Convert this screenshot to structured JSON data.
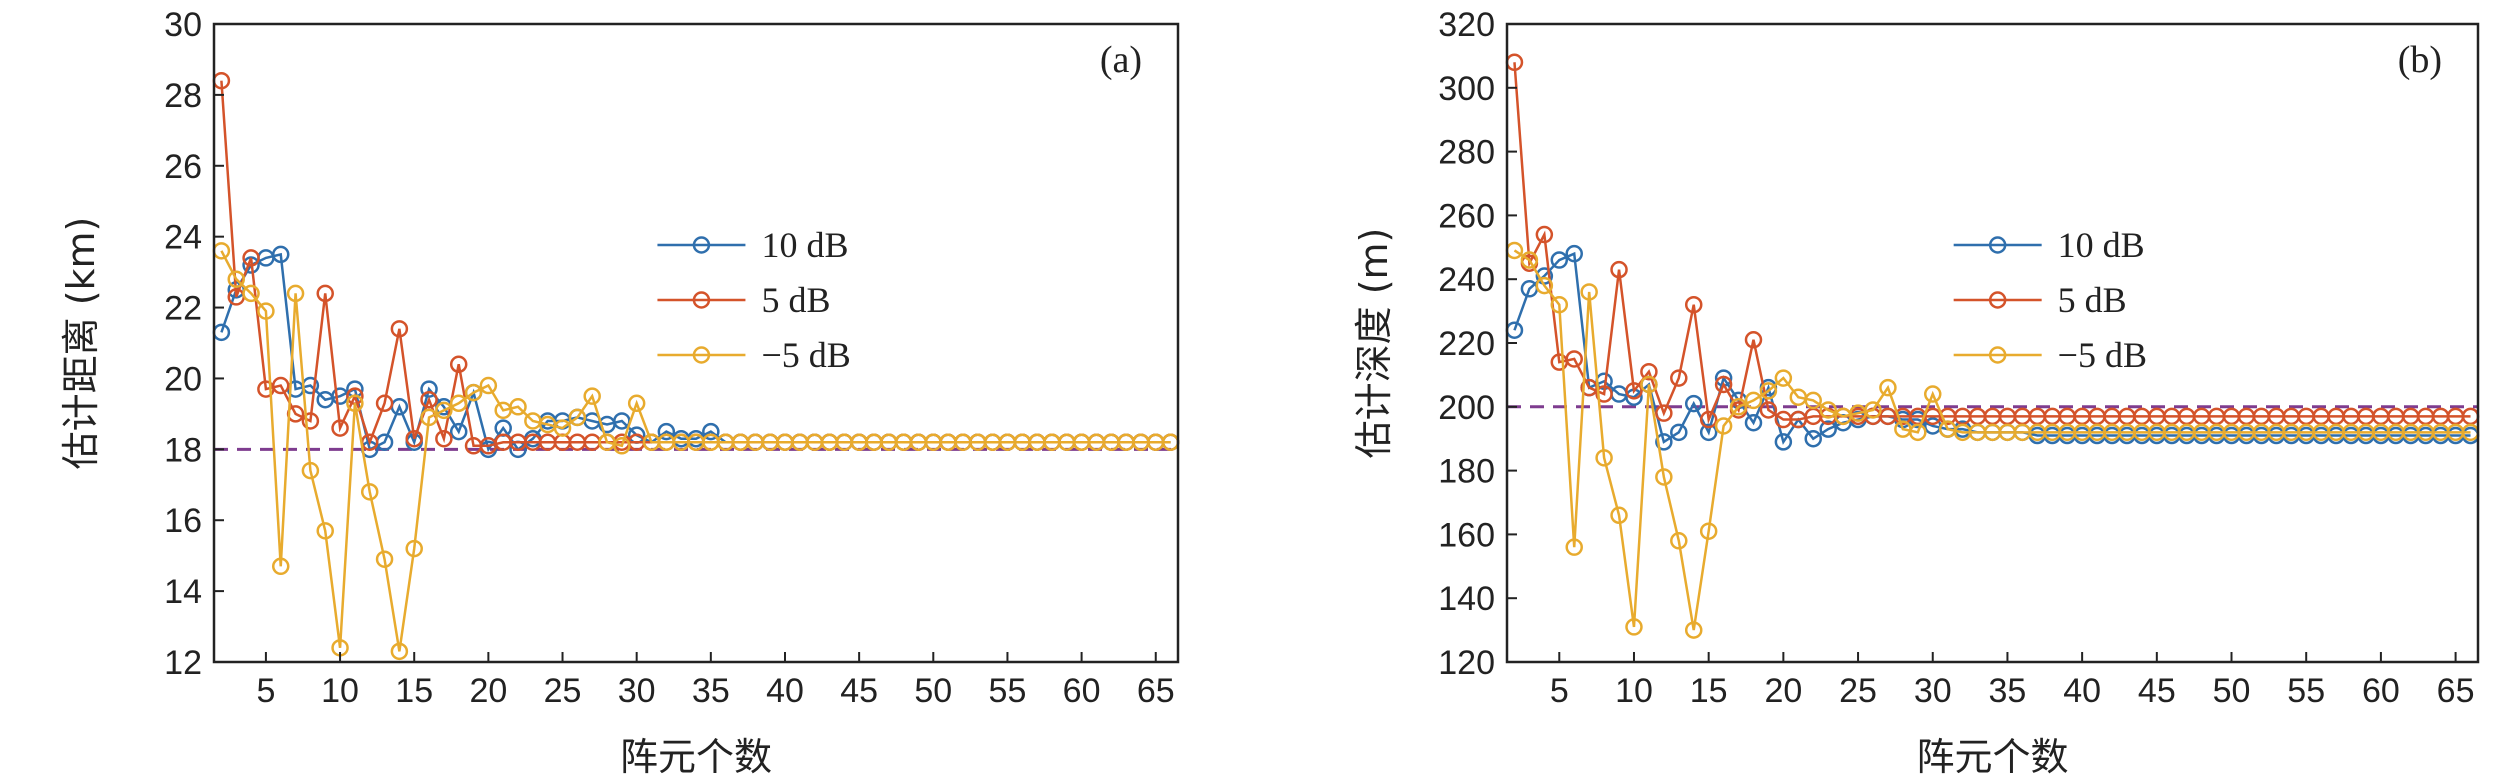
{
  "chart_data": [
    {
      "type": "line",
      "panel_label": "(a)",
      "xlabel": "阵元个数",
      "ylabel": "估计距离 (km)",
      "xlim": [
        1.5,
        66.5
      ],
      "ylim": [
        12,
        30
      ],
      "xticks": [
        5,
        10,
        15,
        20,
        25,
        30,
        35,
        40,
        45,
        50,
        55,
        60,
        65
      ],
      "yticks": [
        12,
        14,
        16,
        18,
        20,
        22,
        24,
        26,
        28,
        30
      ],
      "reference_line": {
        "y": 18,
        "color": "#7e3c8f",
        "style": "dashed"
      },
      "legend_position": "right-middle",
      "x": [
        2,
        3,
        4,
        5,
        6,
        7,
        8,
        9,
        10,
        11,
        12,
        13,
        14,
        15,
        16,
        17,
        18,
        19,
        20,
        21,
        22,
        23,
        24,
        25,
        26,
        27,
        28,
        29,
        30,
        31,
        32,
        33,
        34,
        35,
        36,
        37,
        38,
        39,
        40,
        41,
        42,
        43,
        44,
        45,
        46,
        47,
        48,
        49,
        50,
        51,
        52,
        53,
        54,
        55,
        56,
        57,
        58,
        59,
        60,
        61,
        62,
        63,
        64,
        65,
        66
      ],
      "series": [
        {
          "name": "10 dB",
          "color": "#2f6fad",
          "values": [
            21.3,
            22.5,
            23.2,
            23.4,
            23.5,
            19.7,
            19.8,
            19.4,
            19.5,
            19.7,
            18.0,
            18.2,
            19.2,
            18.2,
            19.7,
            19.2,
            18.5,
            19.6,
            18.0,
            18.6,
            18.0,
            18.3,
            18.8,
            18.8,
            18.9,
            18.8,
            18.7,
            18.8,
            18.4,
            18.2,
            18.5,
            18.3,
            18.3,
            18.5,
            18.2,
            18.2,
            18.2,
            18.2,
            18.2,
            18.2,
            18.2,
            18.2,
            18.2,
            18.2,
            18.2,
            18.2,
            18.2,
            18.2,
            18.2,
            18.2,
            18.2,
            18.2,
            18.2,
            18.2,
            18.2,
            18.2,
            18.2,
            18.2,
            18.2,
            18.2,
            18.2,
            18.2,
            18.2,
            18.2,
            18.2
          ]
        },
        {
          "name": "5 dB",
          "color": "#d4532a",
          "values": [
            28.4,
            22.3,
            23.4,
            19.7,
            19.8,
            19.0,
            18.8,
            22.4,
            18.6,
            19.5,
            18.2,
            19.3,
            21.4,
            18.3,
            19.4,
            18.3,
            20.4,
            18.1,
            18.1,
            18.2,
            18.2,
            18.2,
            18.2,
            18.2,
            18.2,
            18.2,
            18.2,
            18.2,
            18.2,
            18.2,
            18.2,
            18.2,
            18.2,
            18.2,
            18.2,
            18.2,
            18.2,
            18.2,
            18.2,
            18.2,
            18.2,
            18.2,
            18.2,
            18.2,
            18.2,
            18.2,
            18.2,
            18.2,
            18.2,
            18.2,
            18.2,
            18.2,
            18.2,
            18.2,
            18.2,
            18.2,
            18.2,
            18.2,
            18.2,
            18.2,
            18.2,
            18.2,
            18.2,
            18.2,
            18.2
          ]
        },
        {
          "name": "−5 dB",
          "color": "#e8ab2e",
          "values": [
            23.6,
            22.8,
            22.4,
            21.9,
            14.7,
            22.4,
            17.4,
            15.7,
            12.4,
            19.3,
            16.8,
            14.9,
            12.3,
            15.2,
            18.9,
            19.1,
            19.3,
            19.6,
            19.8,
            19.1,
            19.2,
            18.8,
            18.7,
            18.6,
            18.9,
            19.5,
            18.2,
            18.1,
            19.3,
            18.2,
            18.2,
            18.2,
            18.2,
            18.2,
            18.2,
            18.2,
            18.2,
            18.2,
            18.2,
            18.2,
            18.2,
            18.2,
            18.2,
            18.2,
            18.2,
            18.2,
            18.2,
            18.2,
            18.2,
            18.2,
            18.2,
            18.2,
            18.2,
            18.2,
            18.2,
            18.2,
            18.2,
            18.2,
            18.2,
            18.2,
            18.2,
            18.2,
            18.2,
            18.2,
            18.2
          ]
        }
      ]
    },
    {
      "type": "line",
      "panel_label": "(b)",
      "xlabel": "阵元个数",
      "ylabel": "估计深度 (m)",
      "xlim": [
        1.5,
        66.5
      ],
      "ylim": [
        120,
        320
      ],
      "xticks": [
        5,
        10,
        15,
        20,
        25,
        30,
        35,
        40,
        45,
        50,
        55,
        60,
        65
      ],
      "yticks": [
        120,
        140,
        160,
        180,
        200,
        220,
        240,
        260,
        280,
        300,
        320
      ],
      "reference_line": {
        "y": 200,
        "color": "#7e3c8f",
        "style": "dashed"
      },
      "legend_position": "right-middle",
      "x": [
        2,
        3,
        4,
        5,
        6,
        7,
        8,
        9,
        10,
        11,
        12,
        13,
        14,
        15,
        16,
        17,
        18,
        19,
        20,
        21,
        22,
        23,
        24,
        25,
        26,
        27,
        28,
        29,
        30,
        31,
        32,
        33,
        34,
        35,
        36,
        37,
        38,
        39,
        40,
        41,
        42,
        43,
        44,
        45,
        46,
        47,
        48,
        49,
        50,
        51,
        52,
        53,
        54,
        55,
        56,
        57,
        58,
        59,
        60,
        61,
        62,
        63,
        64,
        65,
        66
      ],
      "series": [
        {
          "name": "10 dB",
          "color": "#2f6fad",
          "values": [
            224,
            237,
            241,
            246,
            248,
            206,
            208,
            204,
            203,
            207,
            189,
            192,
            201,
            192,
            209,
            202,
            195,
            206,
            189,
            196,
            190,
            193,
            195,
            196,
            197,
            197,
            196,
            196,
            194,
            193,
            193,
            192,
            192,
            192,
            192,
            191,
            191,
            191,
            191,
            191,
            191,
            191,
            191,
            191,
            191,
            191,
            191,
            191,
            191,
            191,
            191,
            191,
            191,
            191,
            191,
            191,
            191,
            191,
            191,
            191,
            191,
            191,
            191,
            191,
            191
          ]
        },
        {
          "name": "5 dB",
          "color": "#d4532a",
          "values": [
            308,
            245,
            254,
            214,
            215,
            206,
            204,
            243,
            205,
            211,
            198,
            209,
            232,
            196,
            207,
            199,
            221,
            199,
            196,
            196,
            197,
            197,
            197,
            197,
            197,
            197,
            197,
            197,
            197,
            197,
            197,
            197,
            197,
            197,
            197,
            197,
            197,
            197,
            197,
            197,
            197,
            197,
            197,
            197,
            197,
            197,
            197,
            197,
            197,
            197,
            197,
            197,
            197,
            197,
            197,
            197,
            197,
            197,
            197,
            197,
            197,
            197,
            197,
            197,
            197
          ]
        },
        {
          "name": "−5 dB",
          "color": "#e8ab2e",
          "values": [
            249,
            246,
            238,
            232,
            156,
            236,
            184,
            166,
            131,
            207,
            178,
            158,
            130,
            161,
            194,
            200,
            202,
            205,
            209,
            203,
            202,
            199,
            197,
            198,
            199,
            206,
            193,
            192,
            204,
            193,
            192,
            192,
            192,
            192,
            192,
            192,
            192,
            192,
            192,
            192,
            192,
            192,
            192,
            192,
            192,
            192,
            192,
            192,
            192,
            192,
            192,
            192,
            192,
            192,
            192,
            192,
            192,
            192,
            192,
            192,
            192,
            192,
            192,
            192,
            192
          ]
        }
      ]
    }
  ]
}
